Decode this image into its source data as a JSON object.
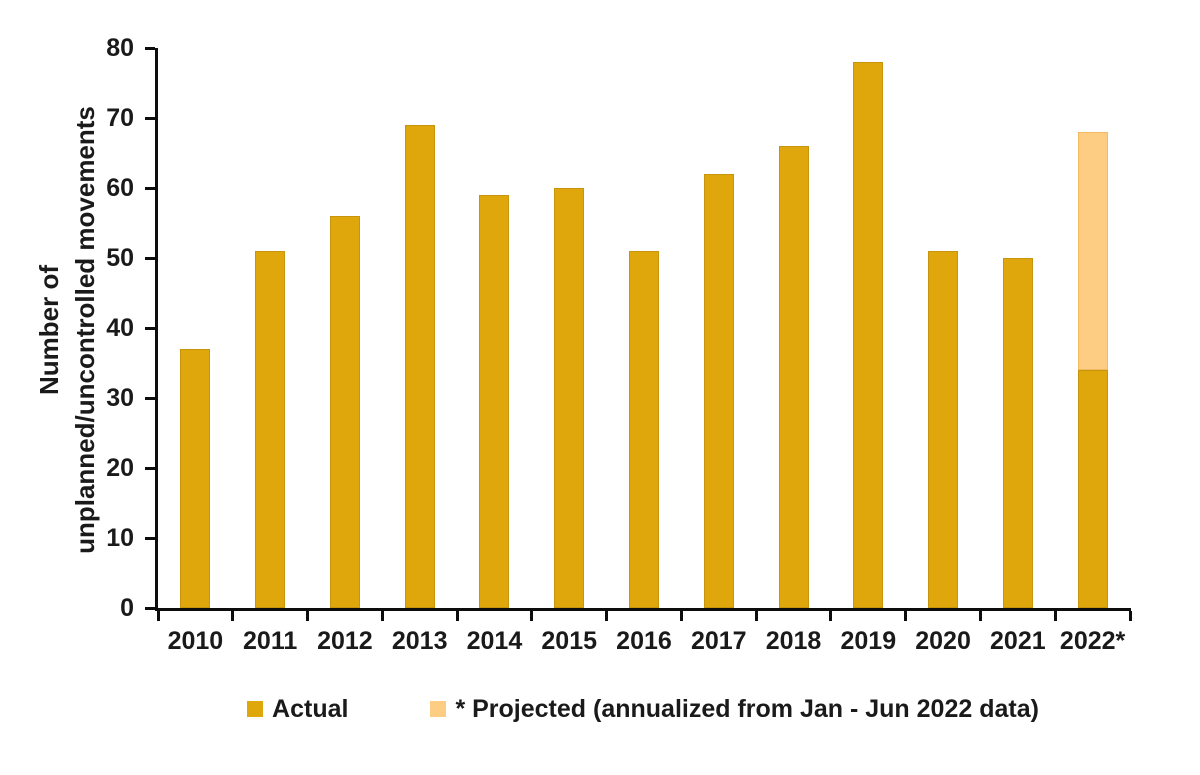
{
  "chart_data": {
    "type": "bar",
    "stacked": true,
    "title": "",
    "categories": [
      "2010",
      "2011",
      "2012",
      "2013",
      "2014",
      "2015",
      "2016",
      "2017",
      "2018",
      "2019",
      "2020",
      "2021",
      "2022*"
    ],
    "series": [
      {
        "name": "Actual",
        "color": "#E0A70D",
        "values": [
          37,
          51,
          56,
          69,
          59,
          60,
          51,
          62,
          66,
          78,
          51,
          50,
          34
        ]
      },
      {
        "name": "* Projected (annualized from Jan - Jun 2022 data)",
        "color": "#FCCD82",
        "values": [
          null,
          null,
          null,
          null,
          null,
          null,
          null,
          null,
          null,
          null,
          null,
          null,
          34
        ]
      }
    ],
    "projected_total_2022": 68,
    "ylabel": "Number of unplanned/uncontrolled movements",
    "ylabel_lines": [
      "Number of",
      "unplanned/uncontrolled movements"
    ],
    "xlabel": "",
    "ylim": [
      0,
      80
    ],
    "yticks": [
      0,
      10,
      20,
      30,
      40,
      50,
      60,
      70,
      80
    ],
    "grid": false,
    "legend_position": "bottom",
    "legend": [
      {
        "label": "Actual",
        "color": "#E0A70D"
      },
      {
        "label": "* Projected (annualized from Jan - Jun 2022 data)",
        "color": "#FCCD82"
      }
    ],
    "axis_color": "#0d0d0d",
    "text_color": "#1a1a1a"
  }
}
